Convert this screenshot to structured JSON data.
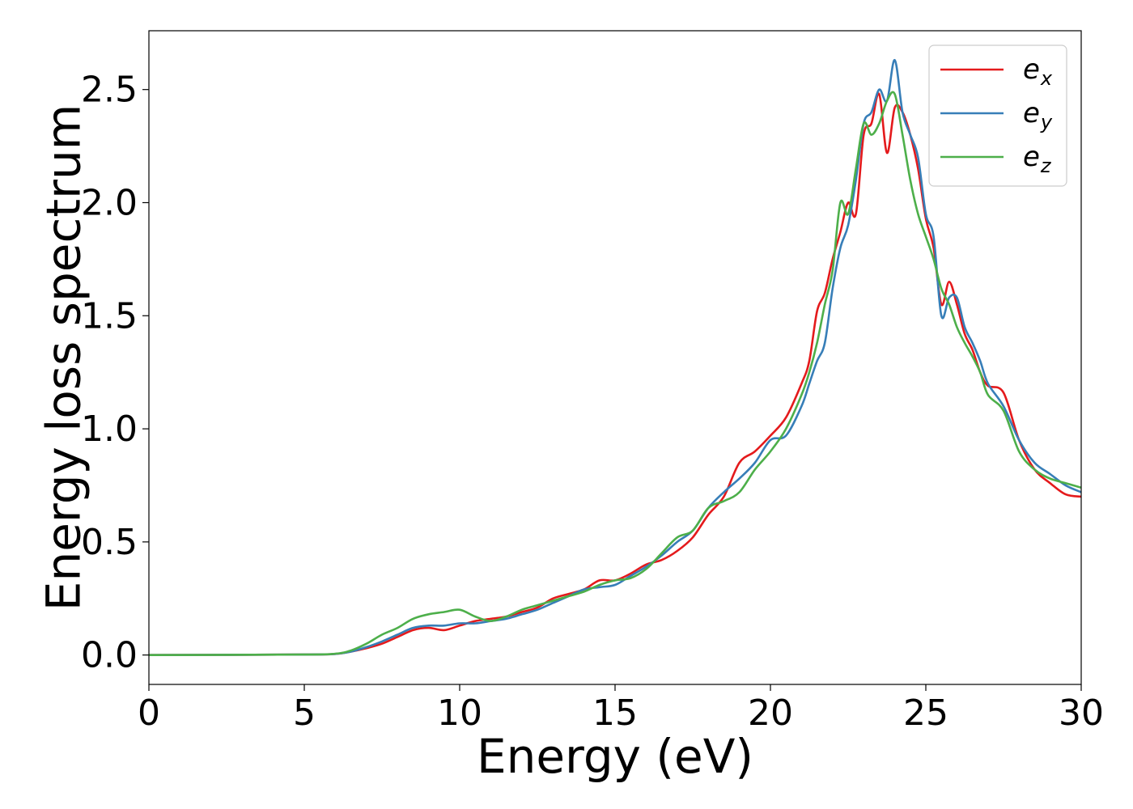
{
  "chart_data": {
    "type": "line",
    "xlabel": "Energy (eV)",
    "ylabel": "Energy loss spectrum",
    "xlim": [
      0,
      30
    ],
    "ylim": [
      -0.13,
      2.76
    ],
    "xticks": [
      0,
      5,
      10,
      15,
      20,
      25,
      30
    ],
    "xtick_labels": [
      "0",
      "5",
      "10",
      "15",
      "20",
      "25",
      "30"
    ],
    "yticks": [
      0.0,
      0.5,
      1.0,
      1.5,
      2.0,
      2.5
    ],
    "ytick_labels": [
      "0.0",
      "0.5",
      "1.0",
      "1.5",
      "2.0",
      "2.5"
    ],
    "grid": false,
    "legend_position": "top-right",
    "series": [
      {
        "name": "e_x",
        "label_base": "e",
        "label_sub": "x",
        "color": "#e41a1c",
        "x": [
          0,
          5,
          6,
          6.5,
          7,
          7.5,
          8,
          8.5,
          9,
          9.5,
          10,
          10.5,
          11,
          11.5,
          12,
          12.5,
          13,
          13.5,
          14,
          14.5,
          15,
          15.5,
          16,
          16.5,
          17,
          17.5,
          18,
          18.5,
          19,
          19.5,
          20,
          20.5,
          21,
          21.25,
          21.5,
          21.75,
          22,
          22.25,
          22.5,
          22.75,
          23,
          23.25,
          23.5,
          23.75,
          24,
          24.25,
          24.5,
          24.75,
          25,
          25.25,
          25.5,
          25.75,
          26,
          26.25,
          26.5,
          26.75,
          27,
          27.5,
          28,
          28.5,
          29,
          29.5,
          30
        ],
        "y": [
          0,
          0.002,
          0.005,
          0.015,
          0.03,
          0.05,
          0.08,
          0.11,
          0.12,
          0.11,
          0.13,
          0.15,
          0.16,
          0.17,
          0.19,
          0.21,
          0.25,
          0.27,
          0.29,
          0.33,
          0.33,
          0.36,
          0.4,
          0.42,
          0.46,
          0.52,
          0.62,
          0.7,
          0.85,
          0.9,
          0.97,
          1.05,
          1.2,
          1.3,
          1.52,
          1.6,
          1.75,
          1.87,
          2.0,
          1.95,
          2.3,
          2.35,
          2.48,
          2.22,
          2.42,
          2.4,
          2.3,
          2.15,
          1.93,
          1.8,
          1.55,
          1.65,
          1.55,
          1.42,
          1.35,
          1.25,
          1.19,
          1.16,
          0.95,
          0.82,
          0.76,
          0.71,
          0.7
        ]
      },
      {
        "name": "e_y",
        "label_base": "e",
        "label_sub": "y",
        "color": "#377eb8",
        "x": [
          0,
          5,
          6,
          6.5,
          7,
          7.5,
          8,
          8.5,
          9,
          9.5,
          10,
          10.5,
          11,
          11.5,
          12,
          12.5,
          13,
          13.5,
          14,
          14.5,
          15,
          15.5,
          16,
          16.5,
          17,
          17.5,
          18,
          18.5,
          19,
          19.5,
          20,
          20.5,
          21,
          21.25,
          21.5,
          21.75,
          22,
          22.25,
          22.5,
          22.75,
          23,
          23.25,
          23.5,
          23.75,
          24,
          24.25,
          24.5,
          24.75,
          25,
          25.25,
          25.5,
          25.75,
          26,
          26.25,
          26.5,
          26.75,
          27,
          27.5,
          28,
          28.5,
          29,
          29.5,
          30
        ],
        "y": [
          0,
          0.002,
          0.005,
          0.015,
          0.035,
          0.06,
          0.09,
          0.12,
          0.13,
          0.13,
          0.14,
          0.14,
          0.15,
          0.16,
          0.18,
          0.2,
          0.23,
          0.26,
          0.29,
          0.3,
          0.31,
          0.35,
          0.39,
          0.44,
          0.5,
          0.55,
          0.65,
          0.72,
          0.78,
          0.85,
          0.95,
          0.97,
          1.1,
          1.2,
          1.3,
          1.38,
          1.62,
          1.8,
          1.9,
          2.1,
          2.35,
          2.4,
          2.5,
          2.45,
          2.63,
          2.4,
          2.3,
          2.2,
          1.95,
          1.85,
          1.5,
          1.58,
          1.58,
          1.45,
          1.38,
          1.3,
          1.2,
          1.1,
          0.95,
          0.85,
          0.8,
          0.75,
          0.72
        ]
      },
      {
        "name": "e_z",
        "label_base": "e",
        "label_sub": "z",
        "color": "#4daf4a",
        "x": [
          0,
          5,
          6,
          6.5,
          7,
          7.5,
          8,
          8.5,
          9,
          9.5,
          10,
          10.5,
          11,
          11.5,
          12,
          12.5,
          13,
          13.5,
          14,
          14.5,
          15,
          15.5,
          16,
          16.5,
          17,
          17.5,
          18,
          18.5,
          19,
          19.5,
          20,
          20.5,
          21,
          21.25,
          21.5,
          21.75,
          22,
          22.25,
          22.5,
          22.75,
          23,
          23.25,
          23.5,
          23.75,
          24,
          24.25,
          24.5,
          24.75,
          25,
          25.25,
          25.5,
          25.75,
          26,
          26.25,
          26.5,
          26.75,
          27,
          27.5,
          28,
          28.5,
          29,
          29.5,
          30
        ],
        "y": [
          0,
          0.002,
          0.006,
          0.02,
          0.05,
          0.09,
          0.12,
          0.16,
          0.18,
          0.19,
          0.2,
          0.17,
          0.15,
          0.17,
          0.2,
          0.22,
          0.24,
          0.26,
          0.28,
          0.31,
          0.33,
          0.34,
          0.38,
          0.45,
          0.52,
          0.55,
          0.65,
          0.68,
          0.72,
          0.82,
          0.9,
          1.0,
          1.15,
          1.25,
          1.38,
          1.55,
          1.7,
          2.0,
          1.95,
          2.15,
          2.35,
          2.3,
          2.35,
          2.45,
          2.48,
          2.3,
          2.1,
          1.95,
          1.85,
          1.75,
          1.62,
          1.55,
          1.45,
          1.38,
          1.32,
          1.25,
          1.15,
          1.08,
          0.9,
          0.82,
          0.78,
          0.76,
          0.74
        ]
      }
    ]
  }
}
